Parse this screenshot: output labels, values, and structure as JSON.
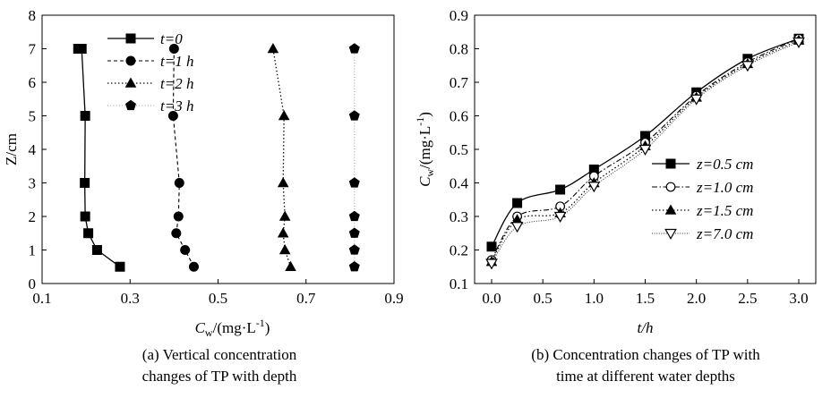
{
  "chart_data": [
    {
      "type": "line",
      "caption_line1": "(a) Vertical concentration",
      "caption_line2": "changes of TP with depth",
      "xlabel": "Cw/(mg·L-1)",
      "ylabel": "Z/cm",
      "xlim": [
        0.1,
        0.9
      ],
      "ylim": [
        0,
        8
      ],
      "xticks": [
        "0.1",
        "0.3",
        "0.5",
        "0.7",
        "0.9"
      ],
      "yticks": [
        "0",
        "1",
        "2",
        "3",
        "4",
        "5",
        "6",
        "7",
        "8"
      ],
      "grid": false,
      "legend_position": "top-left",
      "series": [
        {
          "name": "t=0",
          "marker": "square",
          "line": "solid",
          "x": [
            0.277,
            0.225,
            0.205,
            0.198,
            0.197,
            0.198,
            0.19,
            0.182
          ],
          "y": [
            0.5,
            1,
            1.5,
            2,
            3,
            5,
            7,
            7
          ]
        },
        {
          "name": "t=1 h",
          "marker": "circle",
          "line": "dashed",
          "x": [
            0.445,
            0.425,
            0.405,
            0.41,
            0.412,
            0.398,
            0.4
          ],
          "y": [
            0.5,
            1,
            1.5,
            2,
            3,
            5,
            7
          ]
        },
        {
          "name": "t=2 h",
          "marker": "triangle",
          "line": "dotted",
          "x": [
            0.665,
            0.652,
            0.648,
            0.652,
            0.648,
            0.65,
            0.625
          ],
          "y": [
            0.5,
            1,
            1.5,
            2,
            3,
            5,
            7
          ]
        },
        {
          "name": "t=3 h",
          "marker": "pentagon",
          "line": "faint-dotted",
          "x": [
            0.81,
            0.81,
            0.81,
            0.81,
            0.81,
            0.81,
            0.81
          ],
          "y": [
            0.5,
            1,
            1.5,
            2,
            3,
            5,
            7
          ]
        }
      ]
    },
    {
      "type": "line",
      "caption_line1": "(b) Concentration changes of TP with",
      "caption_line2": "time at different water depths",
      "xlabel": "t/h",
      "ylabel": "Cw/(mg·L-1)",
      "xlim": [
        0,
        3.0
      ],
      "ylim": [
        0.1,
        0.9
      ],
      "xticks": [
        "0.0",
        "0.5",
        "1.0",
        "1.5",
        "2.0",
        "2.5",
        "3.0"
      ],
      "yticks": [
        "0.1",
        "0.2",
        "0.3",
        "0.4",
        "0.5",
        "0.6",
        "0.7",
        "0.8",
        "0.9"
      ],
      "grid": false,
      "legend_position": "center-right",
      "x": [
        0,
        0.25,
        0.67,
        1.0,
        1.5,
        2.0,
        2.5,
        3.0
      ],
      "series": [
        {
          "name": "z=0.5 cm",
          "marker": "filled-square",
          "line": "solid",
          "values": [
            0.21,
            0.34,
            0.38,
            0.44,
            0.54,
            0.67,
            0.77,
            0.83
          ]
        },
        {
          "name": "z=1.0 cm",
          "marker": "open-circle",
          "line": "dash-dot",
          "values": [
            0.17,
            0.3,
            0.33,
            0.42,
            0.52,
            0.66,
            0.76,
            0.83
          ]
        },
        {
          "name": "z=1.5 cm",
          "marker": "filled-triangle",
          "line": "dotted",
          "values": [
            0.165,
            0.29,
            0.31,
            0.4,
            0.51,
            0.655,
            0.755,
            0.825
          ]
        },
        {
          "name": "z=7.0 cm",
          "marker": "open-down-triangle",
          "line": "fine-dotted",
          "values": [
            0.16,
            0.27,
            0.3,
            0.39,
            0.5,
            0.65,
            0.75,
            0.82
          ]
        }
      ]
    }
  ]
}
